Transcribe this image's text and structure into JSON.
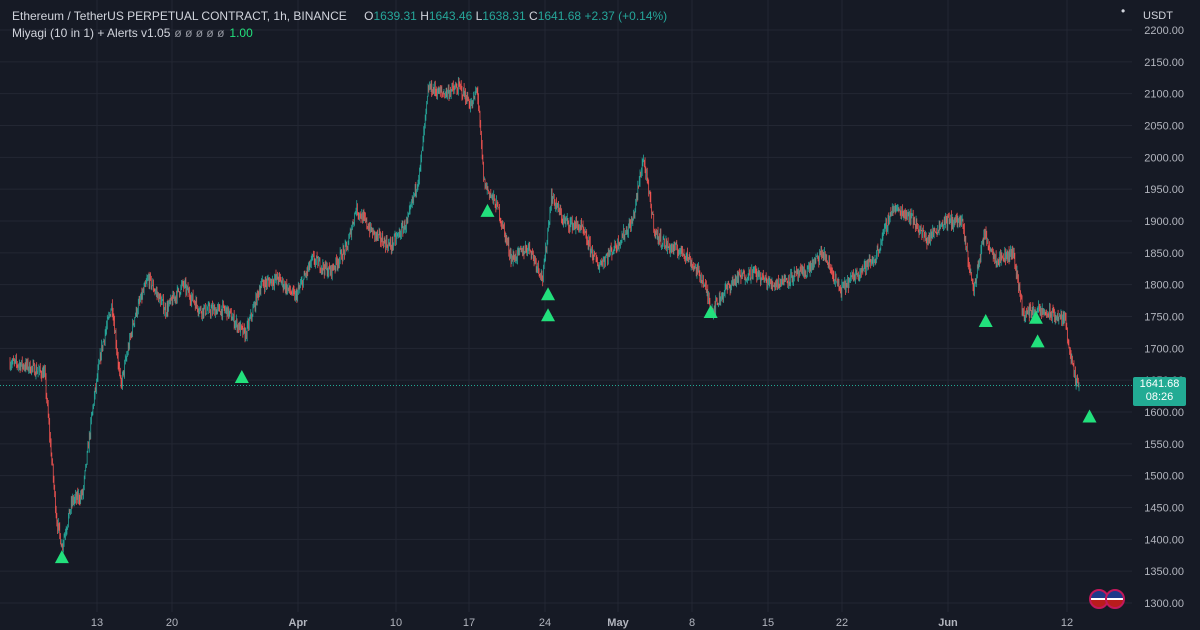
{
  "header": {
    "symbol": "Ethereum / TetherUS PERPETUAL CONTRACT, 1h, BINANCE",
    "o_label": "O",
    "o": "1639.31",
    "h_label": "H",
    "h": "1643.46",
    "l_label": "L",
    "l": "1638.31",
    "c_label": "C",
    "c": "1641.68",
    "change": "+2.37 (+0.14%)"
  },
  "indicator": {
    "name": "Miyagi (10 in 1) + Alerts v1.05",
    "values": "ø ø ø ø ø",
    "value": "1.00"
  },
  "currency": "USDT",
  "menu_icon": "dot-menu-icon",
  "price_tag": {
    "price": "1641.68",
    "countdown": "08:26"
  },
  "colors": {
    "up": "#26a69a",
    "down": "#ef5350",
    "signal": "#22e07c",
    "background": "#161a25",
    "grid": "#232733"
  },
  "chart_data": {
    "type": "candlestick",
    "y_ticks": [
      2200,
      2150,
      2100,
      2050,
      2000,
      1950,
      1900,
      1850,
      1800,
      1750,
      1700,
      1650,
      1600,
      1550,
      1500,
      1450,
      1400,
      1350,
      1300
    ],
    "ylim": [
      1300,
      2200
    ],
    "x_ticks": [
      "13",
      "20",
      "Apr",
      "10",
      "17",
      "24",
      "May",
      "8",
      "15",
      "22",
      "Jun",
      "12"
    ],
    "last_price": 1641.68,
    "price_path": [
      {
        "day": 0,
        "price": 1678
      },
      {
        "day": 1,
        "price": 1672
      },
      {
        "day": 2,
        "price": 1660
      },
      {
        "day": 2.7,
        "price": 1430
      },
      {
        "day": 3.0,
        "price": 1390
      },
      {
        "day": 3.6,
        "price": 1460
      },
      {
        "day": 4.2,
        "price": 1470
      },
      {
        "day": 4.8,
        "price": 1610
      },
      {
        "day": 5.3,
        "price": 1700
      },
      {
        "day": 5.9,
        "price": 1770
      },
      {
        "day": 6.4,
        "price": 1640
      },
      {
        "day": 7.2,
        "price": 1750
      },
      {
        "day": 8.0,
        "price": 1810
      },
      {
        "day": 9.0,
        "price": 1760
      },
      {
        "day": 10.0,
        "price": 1800
      },
      {
        "day": 11.0,
        "price": 1760
      },
      {
        "day": 12.5,
        "price": 1760
      },
      {
        "day": 13.6,
        "price": 1720
      },
      {
        "day": 14.5,
        "price": 1800
      },
      {
        "day": 15.5,
        "price": 1810
      },
      {
        "day": 16.5,
        "price": 1780
      },
      {
        "day": 17.5,
        "price": 1840
      },
      {
        "day": 18.5,
        "price": 1820
      },
      {
        "day": 19.5,
        "price": 1860
      },
      {
        "day": 20.0,
        "price": 1920
      },
      {
        "day": 21.0,
        "price": 1880
      },
      {
        "day": 22.0,
        "price": 1860
      },
      {
        "day": 23.0,
        "price": 1900
      },
      {
        "day": 23.7,
        "price": 1980
      },
      {
        "day": 24.2,
        "price": 2110
      },
      {
        "day": 25.0,
        "price": 2100
      },
      {
        "day": 26.0,
        "price": 2110
      },
      {
        "day": 26.7,
        "price": 2080
      },
      {
        "day": 27.0,
        "price": 2110
      },
      {
        "day": 27.4,
        "price": 1960
      },
      {
        "day": 28.2,
        "price": 1920
      },
      {
        "day": 29.0,
        "price": 1840
      },
      {
        "day": 30.0,
        "price": 1860
      },
      {
        "day": 30.8,
        "price": 1810
      },
      {
        "day": 31.3,
        "price": 1940
      },
      {
        "day": 32.0,
        "price": 1900
      },
      {
        "day": 33.0,
        "price": 1890
      },
      {
        "day": 34.0,
        "price": 1830
      },
      {
        "day": 35.0,
        "price": 1860
      },
      {
        "day": 36.0,
        "price": 1900
      },
      {
        "day": 36.6,
        "price": 2000
      },
      {
        "day": 37.3,
        "price": 1880
      },
      {
        "day": 38.0,
        "price": 1860
      },
      {
        "day": 39.0,
        "price": 1850
      },
      {
        "day": 40.0,
        "price": 1810
      },
      {
        "day": 40.6,
        "price": 1760
      },
      {
        "day": 41.3,
        "price": 1790
      },
      {
        "day": 42.0,
        "price": 1810
      },
      {
        "day": 43.0,
        "price": 1820
      },
      {
        "day": 44.0,
        "price": 1800
      },
      {
        "day": 45.0,
        "price": 1810
      },
      {
        "day": 46.0,
        "price": 1820
      },
      {
        "day": 47.0,
        "price": 1850
      },
      {
        "day": 48.0,
        "price": 1790
      },
      {
        "day": 49.0,
        "price": 1820
      },
      {
        "day": 50.0,
        "price": 1840
      },
      {
        "day": 51.0,
        "price": 1920
      },
      {
        "day": 52.0,
        "price": 1910
      },
      {
        "day": 53.0,
        "price": 1870
      },
      {
        "day": 54.0,
        "price": 1900
      },
      {
        "day": 55.0,
        "price": 1900
      },
      {
        "day": 55.7,
        "price": 1790
      },
      {
        "day": 56.3,
        "price": 1880
      },
      {
        "day": 57.0,
        "price": 1840
      },
      {
        "day": 58.0,
        "price": 1850
      },
      {
        "day": 58.6,
        "price": 1750
      },
      {
        "day": 59.0,
        "price": 1760
      },
      {
        "day": 60.0,
        "price": 1755
      },
      {
        "day": 61.0,
        "price": 1745
      },
      {
        "day": 61.3,
        "price": 1690
      },
      {
        "day": 61.6,
        "price": 1645
      },
      {
        "day": 61.8,
        "price": 1641.68
      }
    ],
    "signals": [
      {
        "day": 3.0,
        "price": 1372
      },
      {
        "day": 13.4,
        "price": 1655
      },
      {
        "day": 27.6,
        "price": 1916
      },
      {
        "day": 31.1,
        "price": 1785
      },
      {
        "day": 31.1,
        "price": 1752
      },
      {
        "day": 40.5,
        "price": 1757
      },
      {
        "day": 56.4,
        "price": 1743
      },
      {
        "day": 59.3,
        "price": 1748
      },
      {
        "day": 59.4,
        "price": 1711
      },
      {
        "day": 62.4,
        "price": 1593
      }
    ]
  }
}
